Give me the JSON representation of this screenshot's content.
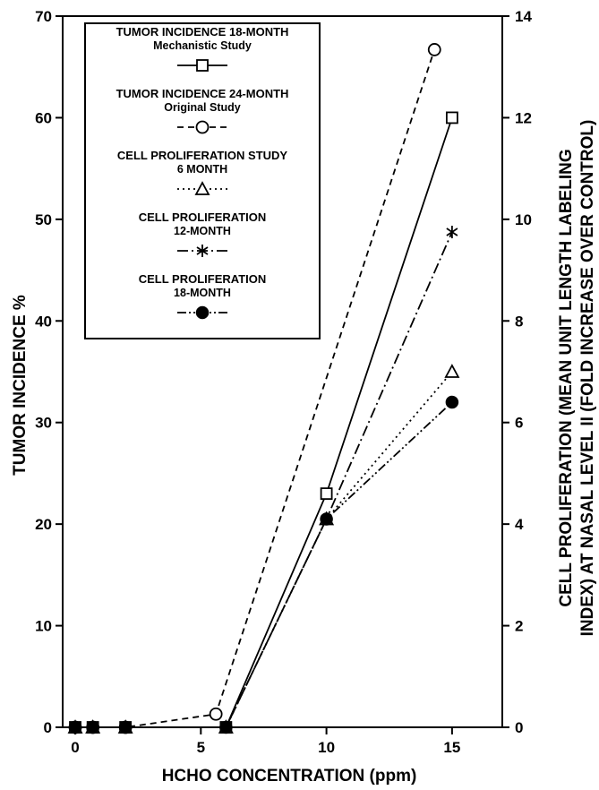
{
  "chart_data": {
    "type": "line",
    "xlabel": "HCHO CONCENTRATION (ppm)",
    "ylabel": "TUMOR INCIDENCE %",
    "y2label_line1": "CELL PROLIFERATION (MEAN UNIT LENGTH LABELING",
    "y2label_line2": "INDEX) AT NASAL LEVEL II (FOLD INCREASE OVER CONTROL)",
    "xlim": [
      -0.5,
      17
    ],
    "ylim": [
      0,
      70
    ],
    "y2lim": [
      0,
      14
    ],
    "xticks": [
      0,
      5,
      10,
      15
    ],
    "yticks": [
      0,
      10,
      20,
      30,
      40,
      50,
      60,
      70
    ],
    "y2ticks": [
      0,
      2,
      4,
      6,
      8,
      10,
      12,
      14
    ],
    "grid": false,
    "legend_position": "top-left",
    "series": [
      {
        "name": "TUMOR INCIDENCE 18-MONTH",
        "subtitle": "Mechanistic Study",
        "axis": "left",
        "line_style": "solid",
        "marker": "square-open",
        "x": [
          0,
          0.7,
          2,
          6,
          10,
          15
        ],
        "y": [
          0,
          0,
          0,
          0,
          23,
          60
        ]
      },
      {
        "name": "TUMOR INCIDENCE 24-MONTH",
        "subtitle": "Original Study",
        "axis": "left",
        "line_style": "dashed",
        "marker": "circle-open",
        "x": [
          0,
          0.7,
          2,
          5.6,
          14.3
        ],
        "y": [
          0,
          0,
          0,
          1.3,
          66.7
        ]
      },
      {
        "name": "CELL PROLIFERATION STUDY",
        "subtitle": "6 MONTH",
        "axis": "right",
        "line_style": "dotted",
        "marker": "triangle-open",
        "x": [
          0,
          0.7,
          2,
          6,
          10,
          15
        ],
        "y": [
          0,
          0,
          0,
          0,
          4.1,
          7.0
        ]
      },
      {
        "name": "CELL PROLIFERATION",
        "subtitle": "12-MONTH",
        "axis": "right",
        "line_style": "dash-dot",
        "marker": "asterisk",
        "x": [
          0,
          0.7,
          2,
          6,
          10,
          15
        ],
        "y": [
          0,
          0,
          0,
          0,
          4.1,
          9.75
        ]
      },
      {
        "name": "CELL PROLIFERATION",
        "subtitle": "18-MONTH",
        "axis": "right",
        "line_style": "dash-dot-dot",
        "marker": "circle-filled",
        "x": [
          0,
          0.7,
          2,
          6,
          10,
          15
        ],
        "y": [
          0,
          0,
          0,
          0,
          4.1,
          6.4
        ]
      }
    ]
  }
}
